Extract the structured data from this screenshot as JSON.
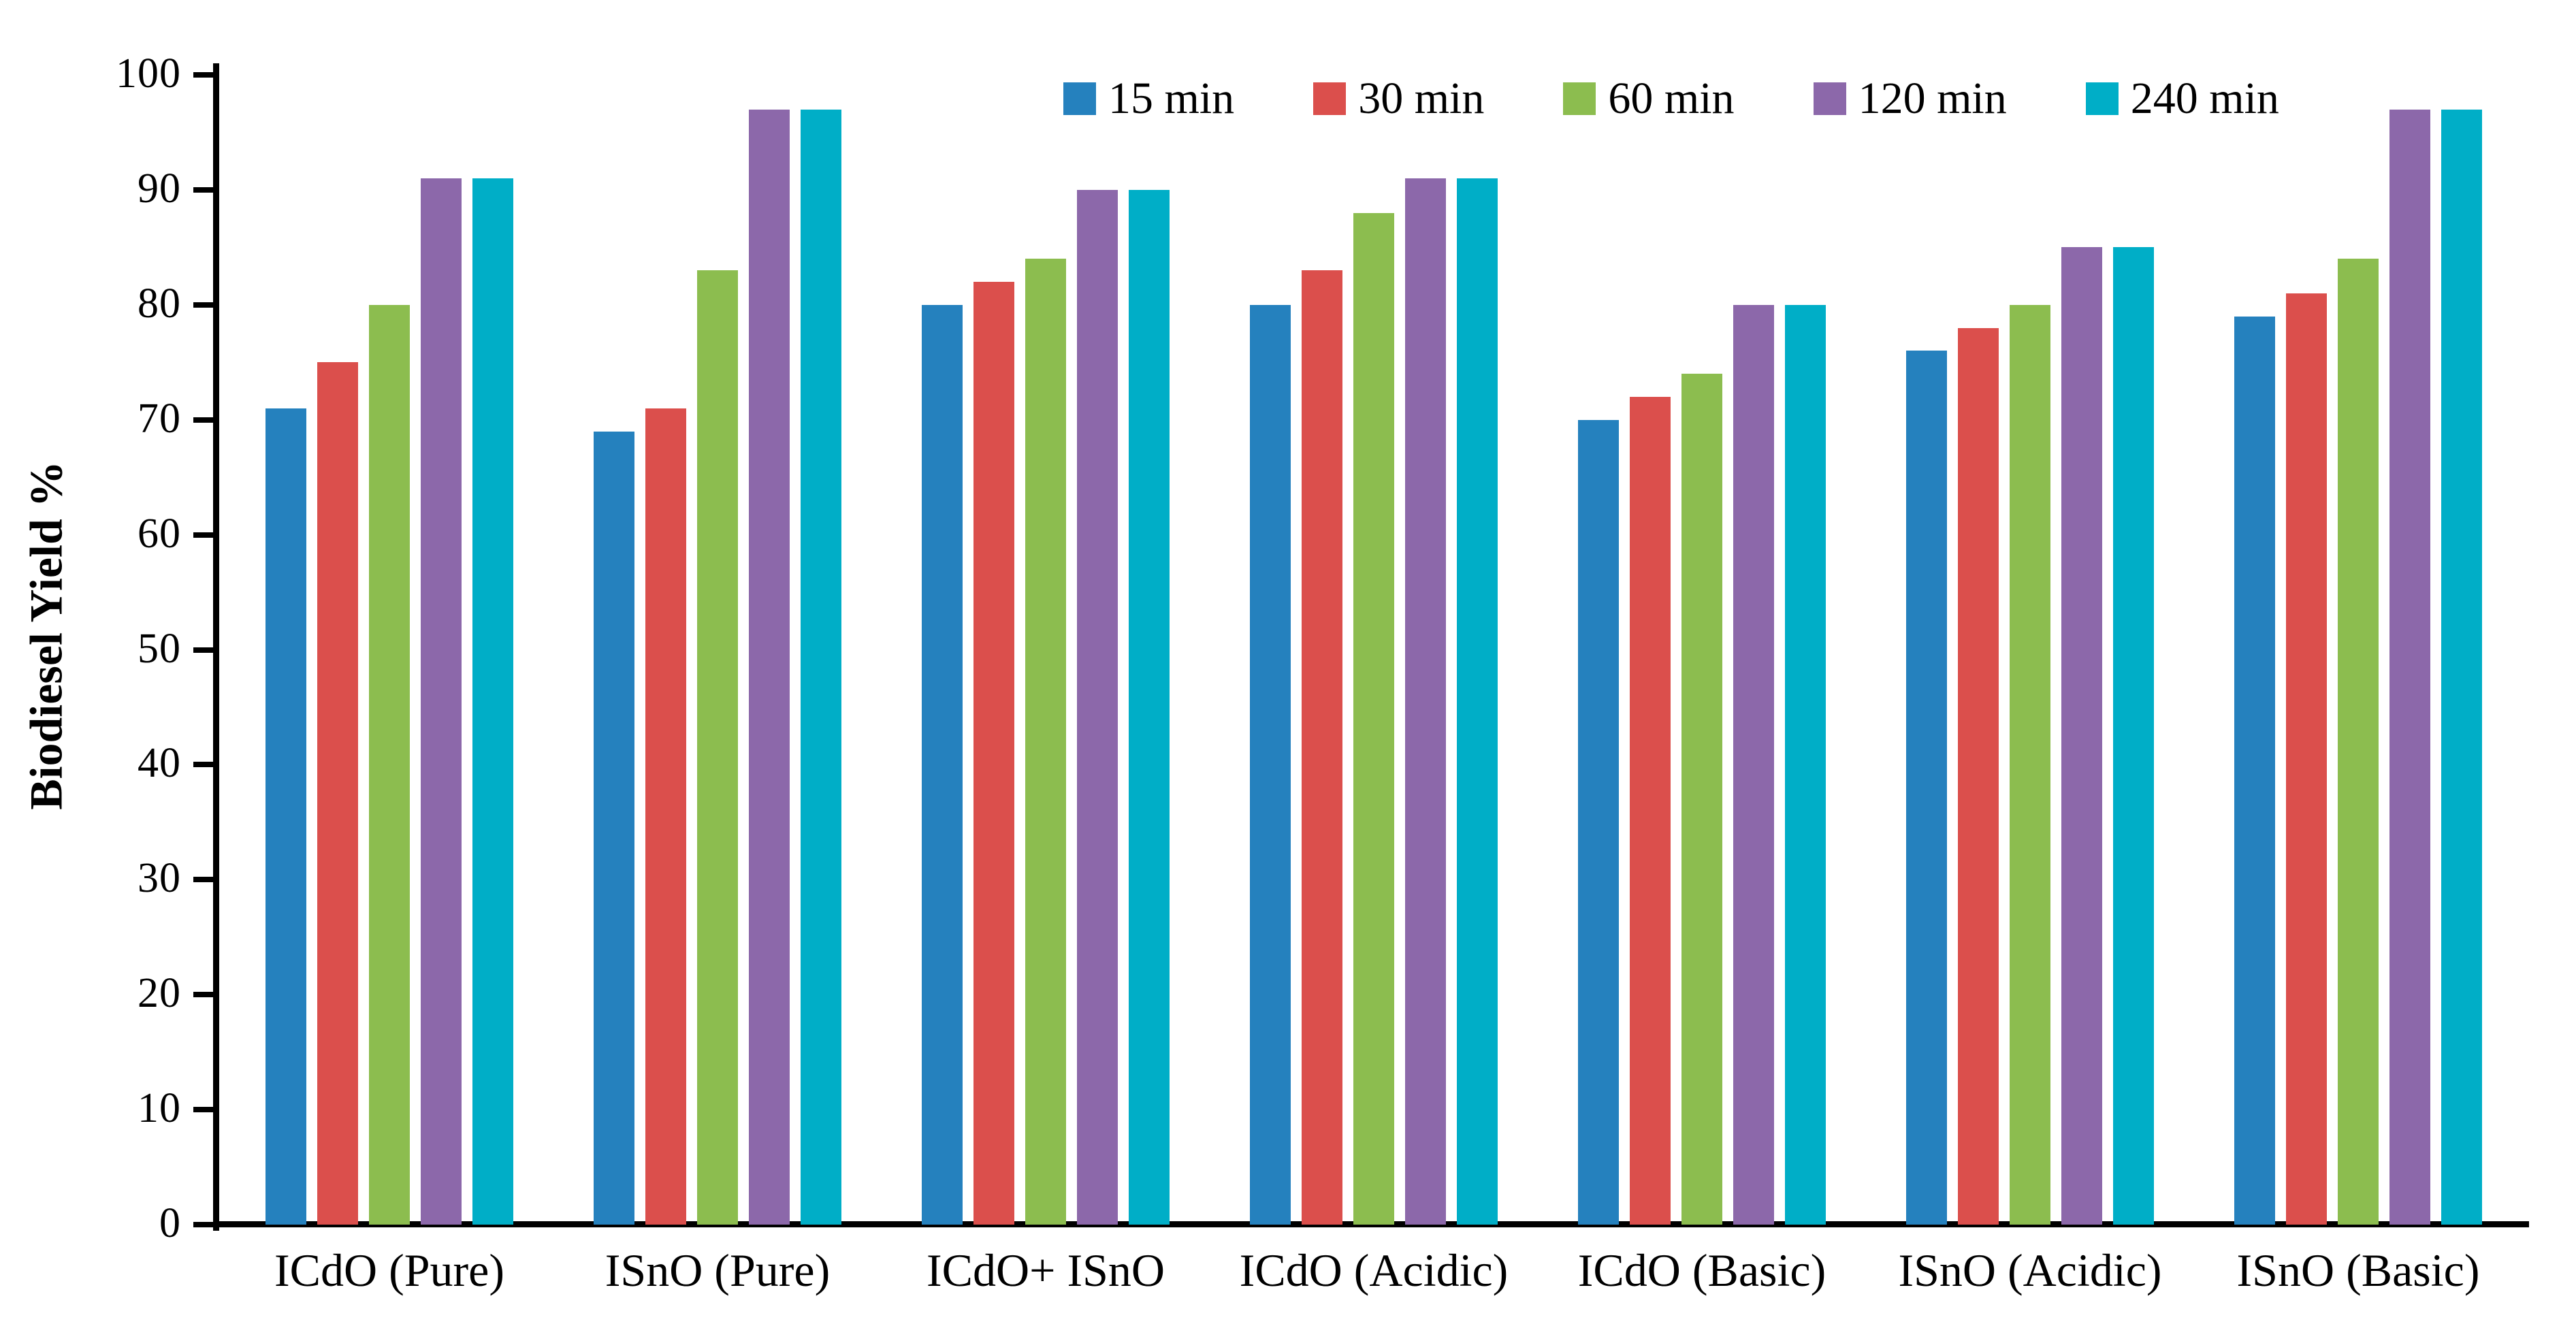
{
  "chart_data": {
    "type": "bar",
    "title": "",
    "xlabel": "",
    "ylabel": "Biodiesel Yield %",
    "ylim": [
      0,
      100
    ],
    "y_ticks": [
      0,
      10,
      20,
      30,
      40,
      50,
      60,
      70,
      80,
      90,
      100
    ],
    "grid": false,
    "legend_position": "top-center",
    "background_color": "#ffffff",
    "axis_color": "#000000",
    "categories": [
      "ICdO (Pure)",
      "ISnO (Pure)",
      "ICdO+ ISnO",
      "ICdO (Acidic)",
      "ICdO (Basic)",
      "ISnO (Acidic)",
      "ISnO (Basic)"
    ],
    "series": [
      {
        "name": "15 min",
        "color": "#2581BE",
        "values": [
          71,
          69,
          80,
          80,
          70,
          76,
          79
        ]
      },
      {
        "name": "30 min",
        "color": "#DB4F4C",
        "values": [
          75,
          71,
          82,
          83,
          72,
          78,
          81
        ]
      },
      {
        "name": "60 min",
        "color": "#8CBD4F",
        "values": [
          80,
          83,
          84,
          88,
          74,
          80,
          84
        ]
      },
      {
        "name": "120 min",
        "color": "#8C68AA",
        "values": [
          91,
          97,
          90,
          91,
          80,
          85,
          97
        ]
      },
      {
        "name": "240 min",
        "color": "#00AEC7",
        "values": [
          91,
          97,
          90,
          91,
          80,
          85,
          97
        ]
      }
    ]
  }
}
